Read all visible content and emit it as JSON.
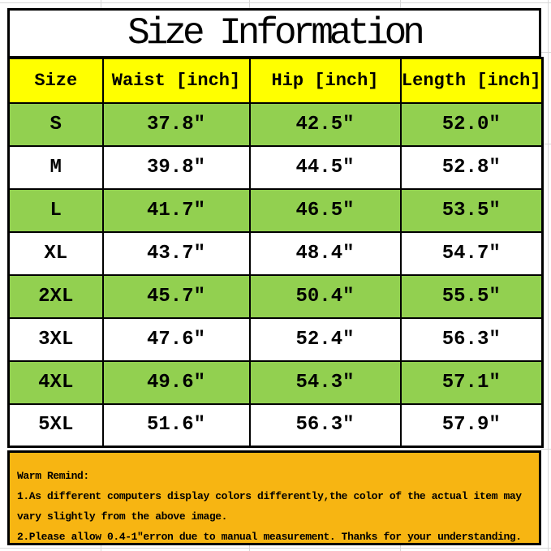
{
  "chart_data": {
    "type": "table",
    "title": "Size Information",
    "columns": [
      "Size",
      "Waist [inch]",
      "Hip [inch]",
      "Length [inch]"
    ],
    "rows": [
      [
        "S",
        "37.8″",
        "42.5″",
        "52.0″"
      ],
      [
        "M",
        "39.8″",
        "44.5″",
        "52.8″"
      ],
      [
        "L",
        "41.7″",
        "46.5″",
        "53.5″"
      ],
      [
        "XL",
        "43.7″",
        "48.4″",
        "54.7″"
      ],
      [
        "2XL",
        "45.7″",
        "50.4″",
        "55.5″"
      ],
      [
        "3XL",
        "47.6″",
        "52.4″",
        "56.3″"
      ],
      [
        "4XL",
        "49.6″",
        "54.3″",
        "57.1″"
      ],
      [
        "5XL",
        "51.6″",
        "56.3″",
        "57.9″"
      ]
    ],
    "layout": {
      "legend": "none",
      "grid": "black cell borders, alternating row fill",
      "row_fill_pattern": [
        "green",
        "white"
      ]
    }
  },
  "warning": {
    "heading": "Warm Remind:",
    "lines": [
      "1.As different computers display colors differently,the color of the actual item may",
      "vary slightly from the above image.",
      "2.Please allow 0.4-1″erron due to manual measurement. Thanks for your understanding."
    ]
  },
  "colors": {
    "header_bg": "#ffff00",
    "row_green": "#92d050",
    "warning_bg": "#f7b512",
    "border": "#000000",
    "gridline": "#d8d8d8"
  }
}
